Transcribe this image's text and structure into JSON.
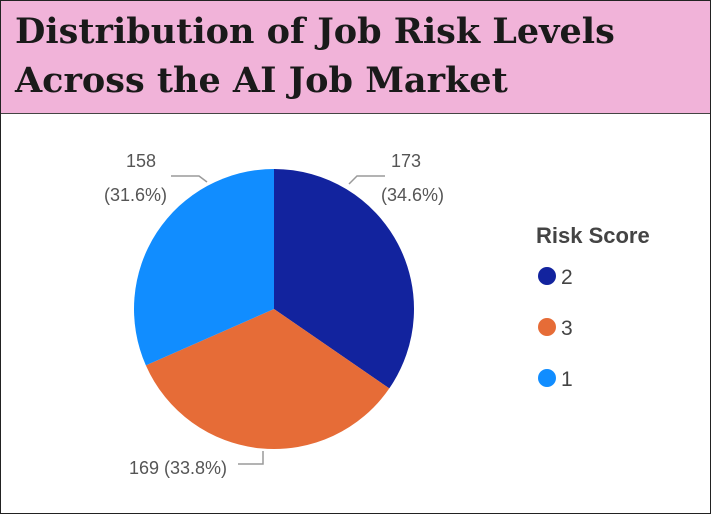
{
  "title": "Distribution of Job Risk Levels\nAcross the AI Job Market",
  "chart_data": {
    "type": "pie",
    "legend": {
      "title": "Risk Score",
      "position": "right"
    },
    "slices": [
      {
        "name": "2",
        "value": 173,
        "percent": "34.6%",
        "color": "#12239e"
      },
      {
        "name": "3",
        "value": 169,
        "percent": "33.8%",
        "color": "#e66c37"
      },
      {
        "name": "1",
        "value": 158,
        "percent": "31.6%",
        "color": "#118dff"
      }
    ],
    "data_labels": {
      "2": {
        "line1": "173",
        "line2": "(34.6%)"
      },
      "3": {
        "line1": "169 (33.8%)"
      },
      "1": {
        "line1": "158",
        "line2": "(31.6%)"
      }
    }
  }
}
